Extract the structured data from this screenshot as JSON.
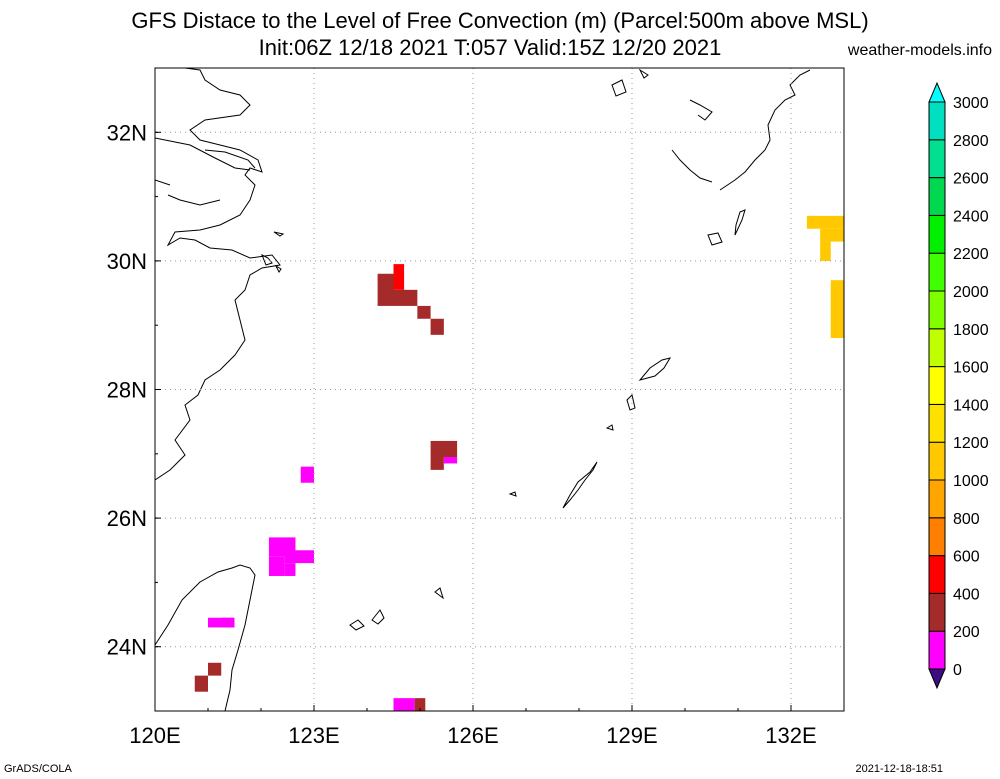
{
  "header": {
    "title": "GFS Distace to the Level of Free Convection (m) (Parcel:500m above MSL)",
    "subtitle": "Init:06Z 12/18 2021 T:057 Valid:15Z 12/20 2021",
    "site": "weather-models.info"
  },
  "footer": {
    "left": "GrADS/COLA",
    "right": "2021-12-18-18:51"
  },
  "chart_data": {
    "type": "heatmap",
    "title": "GFS Distace to the Level of Free Convection (m) (Parcel:500m above MSL)",
    "xlim": [
      120,
      133
    ],
    "ylim": [
      23,
      33
    ],
    "x_ticks": [
      120,
      123,
      126,
      129,
      132
    ],
    "x_tick_labels": [
      "120E",
      "123E",
      "126E",
      "129E",
      "132E"
    ],
    "y_ticks": [
      24,
      26,
      28,
      30,
      32
    ],
    "y_tick_labels": [
      "24N",
      "26N",
      "28N",
      "30N",
      "32N"
    ],
    "grid": true,
    "colorbar": {
      "placement": "right",
      "levels": [
        0,
        200,
        400,
        600,
        800,
        1000,
        1200,
        1400,
        1600,
        1800,
        2000,
        2200,
        2400,
        2600,
        2800,
        3000
      ],
      "tick_labels": [
        "0",
        "200",
        "400",
        "600",
        "800",
        "1000",
        "1200",
        "1400",
        "1600",
        "1800",
        "2000",
        "2200",
        "2400",
        "2600",
        "2800",
        "3000"
      ],
      "colors": [
        "#3a0d80",
        "#ff00ff",
        "#a52a2a",
        "#ff0000",
        "#ff7f00",
        "#ffa500",
        "#ffc800",
        "#ffe100",
        "#ffff00",
        "#bfff00",
        "#7fff00",
        "#40ff00",
        "#00f000",
        "#00d850",
        "#00e090",
        "#00e0c0",
        "#00ffff"
      ]
    },
    "cells": [
      {
        "lon0": 124.2,
        "lon1": 124.5,
        "lat0": 29.3,
        "lat1": 29.8,
        "value": 300
      },
      {
        "lon0": 124.5,
        "lon1": 124.95,
        "lat0": 29.3,
        "lat1": 29.55,
        "value": 300
      },
      {
        "lon0": 124.95,
        "lon1": 125.2,
        "lat0": 29.1,
        "lat1": 29.3,
        "value": 300
      },
      {
        "lon0": 125.2,
        "lon1": 125.45,
        "lat0": 28.85,
        "lat1": 29.1,
        "value": 300
      },
      {
        "lon0": 124.5,
        "lon1": 124.7,
        "lat0": 29.55,
        "lat1": 29.95,
        "value": 500
      },
      {
        "lon0": 125.2,
        "lon1": 125.7,
        "lat0": 26.95,
        "lat1": 27.2,
        "value": 300
      },
      {
        "lon0": 125.2,
        "lon1": 125.45,
        "lat0": 26.75,
        "lat1": 26.95,
        "value": 300
      },
      {
        "lon0": 125.45,
        "lon1": 125.7,
        "lat0": 26.85,
        "lat1": 26.95,
        "value": 100
      },
      {
        "lon0": 122.75,
        "lon1": 123.0,
        "lat0": 26.55,
        "lat1": 26.8,
        "value": 50
      },
      {
        "lon0": 122.15,
        "lon1": 122.65,
        "lat0": 25.4,
        "lat1": 25.7,
        "value": 50
      },
      {
        "lon0": 122.15,
        "lon1": 122.45,
        "lat0": 25.1,
        "lat1": 25.4,
        "value": 150
      },
      {
        "lon0": 122.45,
        "lon1": 123.0,
        "lat0": 25.3,
        "lat1": 25.45,
        "value": 150
      },
      {
        "lon0": 122.65,
        "lon1": 123.0,
        "lat0": 25.45,
        "lat1": 25.5,
        "value": 150
      },
      {
        "lon0": 122.45,
        "lon1": 122.65,
        "lat0": 25.1,
        "lat1": 25.3,
        "value": 150
      },
      {
        "lon0": 121.0,
        "lon1": 121.5,
        "lat0": 24.3,
        "lat1": 24.45,
        "value": 50
      },
      {
        "lon0": 121.25,
        "lon1": 121.5,
        "lat0": 24.3,
        "lat1": 24.45,
        "value": 150
      },
      {
        "lon0": 121.0,
        "lon1": 121.25,
        "lat0": 23.55,
        "lat1": 23.75,
        "value": 300
      },
      {
        "lon0": 120.75,
        "lon1": 121.0,
        "lat0": 23.3,
        "lat1": 23.55,
        "value": 300
      },
      {
        "lon0": 124.5,
        "lon1": 124.9,
        "lat0": 23.0,
        "lat1": 23.2,
        "value": 150
      },
      {
        "lon0": 124.9,
        "lon1": 125.1,
        "lat0": 23.0,
        "lat1": 23.2,
        "value": 300
      },
      {
        "lon0": 132.3,
        "lon1": 133.0,
        "lat0": 30.5,
        "lat1": 30.7,
        "value": 1050
      },
      {
        "lon0": 132.55,
        "lon1": 133.0,
        "lat0": 30.3,
        "lat1": 30.5,
        "value": 1050
      },
      {
        "lon0": 132.55,
        "lon1": 132.75,
        "lat0": 30.0,
        "lat1": 30.3,
        "value": 1050
      },
      {
        "lon0": 132.75,
        "lon1": 133.0,
        "lat0": 28.8,
        "lat1": 29.7,
        "value": 1050
      }
    ]
  }
}
